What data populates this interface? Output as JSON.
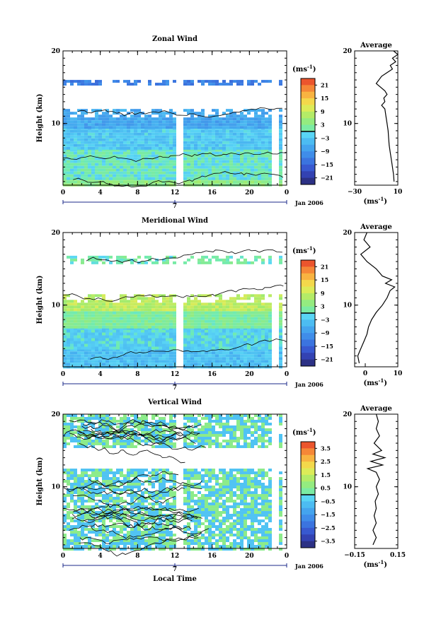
{
  "chart_data": [
    {
      "type": "heatmap",
      "panel": "zonal",
      "title": "Zonal Wind",
      "xlabel": "",
      "ylabel": "Height (km)",
      "xlim": [
        0,
        24
      ],
      "ylim": [
        1.5,
        20
      ],
      "x_ticks": [
        "0",
        "4",
        "8",
        "12",
        "16",
        "20",
        "0"
      ],
      "y_ticks": [
        "10",
        "20"
      ],
      "date_label": "Jan 2006",
      "day_label": "7",
      "colorbar": {
        "unit_label": "(ms",
        "unit_exp": "-1",
        "unit_close": ")",
        "range": [
          -24,
          24
        ],
        "tick_values": [
          21,
          15,
          9,
          3,
          -3,
          -9,
          -15,
          -21
        ],
        "tick_labels": [
          "21",
          "15",
          "9",
          "3",
          "−3",
          "−9",
          "−15",
          "−21"
        ],
        "zero_line": 0
      },
      "field": {
        "bands": [
          {
            "from_km": 1.5,
            "to_km": 2.5,
            "value": 4
          },
          {
            "from_km": 2.5,
            "to_km": 6.5,
            "value": 0
          },
          {
            "from_km": 6.5,
            "to_km": 9.5,
            "value": -3
          },
          {
            "from_km": 9.5,
            "to_km": 12.0,
            "value": -7
          },
          {
            "from_km": 15.5,
            "to_km": 16.0,
            "value": -12
          }
        ],
        "gaps_hours": [
          12.3,
          22.6
        ]
      },
      "average_profile": {
        "title": "Average",
        "xlabel": "(ms",
        "xlabel_exp": "-1",
        "xlabel_close": ")",
        "xlim": [
          -30,
          10
        ],
        "x_ticks": [
          "−30",
          "10"
        ],
        "ylim": [
          1.5,
          20
        ],
        "y_ticks": [
          "10",
          "20"
        ],
        "points": [
          [
            6.5,
            2.0
          ],
          [
            6.0,
            3.0
          ],
          [
            5.0,
            4.0
          ],
          [
            4.0,
            5.0
          ],
          [
            3.0,
            6.0
          ],
          [
            2.0,
            7.0
          ],
          [
            1.5,
            8.0
          ],
          [
            1.0,
            9.0
          ],
          [
            0.0,
            10.0
          ],
          [
            -1.0,
            11.0
          ],
          [
            -2.0,
            12.0
          ],
          [
            -5.0,
            12.5
          ],
          [
            -2.0,
            13.0
          ],
          [
            -3.0,
            13.5
          ],
          [
            0.0,
            14.0
          ],
          [
            -2.0,
            14.5
          ],
          [
            -10.0,
            15.5
          ],
          [
            -5.0,
            16.5
          ],
          [
            0.0,
            17.0
          ],
          [
            5.0,
            17.5
          ],
          [
            3.0,
            18.0
          ],
          [
            8.0,
            18.5
          ],
          [
            5.0,
            19.0
          ],
          [
            10.0,
            19.5
          ],
          [
            6.0,
            20.0
          ]
        ]
      }
    },
    {
      "type": "heatmap",
      "panel": "meridional",
      "title": "Meridional Wind",
      "xlabel": "",
      "ylabel": "Height (km)",
      "xlim": [
        0,
        24
      ],
      "ylim": [
        1.5,
        20
      ],
      "x_ticks": [
        "0",
        "4",
        "8",
        "12",
        "16",
        "20",
        "0"
      ],
      "y_ticks": [
        "10",
        "20"
      ],
      "date_label": "Jan 2006",
      "day_label": "7",
      "colorbar": {
        "unit_label": "(ms",
        "unit_exp": "-1",
        "unit_close": ")",
        "range": [
          -24,
          24
        ],
        "tick_values": [
          21,
          15,
          9,
          3,
          -3,
          -9,
          -15,
          -21
        ],
        "tick_labels": [
          "21",
          "15",
          "9",
          "3",
          "−3",
          "−9",
          "−15",
          "−21"
        ],
        "zero_line": 0
      },
      "field": {
        "bands": [
          {
            "from_km": 1.5,
            "to_km": 4.0,
            "value": -4
          },
          {
            "from_km": 4.0,
            "to_km": 7.0,
            "value": -2
          },
          {
            "from_km": 7.0,
            "to_km": 9.5,
            "value": 2
          },
          {
            "from_km": 9.5,
            "to_km": 11.5,
            "value": 8
          },
          {
            "from_km": 16.0,
            "to_km": 16.8,
            "value": 1
          }
        ],
        "gaps_hours": [
          12.4,
          22.6
        ]
      },
      "average_profile": {
        "title": "Average",
        "xlabel": "(ms",
        "xlabel_exp": "-1",
        "xlabel_close": ")",
        "xlim": [
          -4,
          10
        ],
        "x_ticks": [
          "0",
          "10"
        ],
        "ylim": [
          1.5,
          20
        ],
        "y_ticks": [
          "10",
          "20"
        ],
        "points": [
          [
            -2.5,
            2.0
          ],
          [
            -3.0,
            3.0
          ],
          [
            -2.0,
            4.0
          ],
          [
            -1.0,
            5.0
          ],
          [
            0.0,
            6.0
          ],
          [
            0.5,
            7.0
          ],
          [
            1.5,
            8.0
          ],
          [
            3.0,
            9.0
          ],
          [
            5.0,
            10.0
          ],
          [
            6.5,
            11.0
          ],
          [
            7.5,
            12.0
          ],
          [
            9.0,
            12.5
          ],
          [
            6.0,
            13.0
          ],
          [
            8.0,
            13.5
          ],
          [
            5.0,
            14.0
          ],
          [
            3.0,
            15.0
          ],
          [
            0.0,
            16.0
          ],
          [
            -2.0,
            17.0
          ],
          [
            1.0,
            18.0
          ],
          [
            -1.0,
            19.0
          ],
          [
            0.0,
            20.0
          ]
        ]
      }
    },
    {
      "type": "heatmap",
      "panel": "vertical",
      "title": "Vertical Wind",
      "xlabel": "Local Time",
      "ylabel": "Height (km)",
      "xlim": [
        0,
        24
      ],
      "ylim": [
        1.5,
        20
      ],
      "x_ticks": [
        "0",
        "4",
        "8",
        "12",
        "16",
        "20",
        "0"
      ],
      "y_ticks": [
        "10",
        "20"
      ],
      "date_label": "Jan 2006",
      "day_label": "7",
      "colorbar": {
        "unit_label": "(ms",
        "unit_exp": "-1",
        "unit_close": ")",
        "range": [
          -4,
          4
        ],
        "tick_values": [
          3.5,
          2.5,
          1.5,
          0.5,
          -0.5,
          -1.5,
          -2.5,
          -3.5
        ],
        "tick_labels": [
          "3.5",
          "2.5",
          "1.5",
          "0.5",
          "−0.5",
          "−1.5",
          "−2.5",
          "−3.5"
        ],
        "zero_line": 0
      },
      "field": {
        "bands": [
          {
            "from_km": 1.5,
            "to_km": 12.5,
            "value": 0
          },
          {
            "from_km": 15.5,
            "to_km": 20.0,
            "value": 0
          }
        ],
        "gaps_hours": [
          12.3,
          22.6
        ]
      },
      "average_profile": {
        "title": "Average",
        "xlabel": "(ms",
        "xlabel_exp": "-1",
        "xlabel_close": ")",
        "xlim": [
          -0.2,
          0.2
        ],
        "x_ticks": [
          "−0.15",
          "0.15"
        ],
        "ylim": [
          1.5,
          20
        ],
        "y_ticks": [
          "10",
          "20"
        ],
        "points": [
          [
            -0.03,
            2.0
          ],
          [
            0.0,
            3.0
          ],
          [
            -0.03,
            4.0
          ],
          [
            0.0,
            5.0
          ],
          [
            -0.02,
            6.0
          ],
          [
            0.0,
            7.0
          ],
          [
            -0.01,
            8.0
          ],
          [
            0.02,
            9.0
          ],
          [
            0.0,
            10.0
          ],
          [
            0.03,
            11.0
          ],
          [
            0.0,
            12.0
          ],
          [
            -0.08,
            12.5
          ],
          [
            0.06,
            13.0
          ],
          [
            -0.05,
            13.5
          ],
          [
            0.08,
            14.0
          ],
          [
            -0.03,
            14.5
          ],
          [
            0.05,
            15.0
          ],
          [
            -0.02,
            16.0
          ],
          [
            0.03,
            17.0
          ],
          [
            0.0,
            18.0
          ],
          [
            0.02,
            19.0
          ],
          [
            0.0,
            20.0
          ]
        ]
      }
    }
  ]
}
